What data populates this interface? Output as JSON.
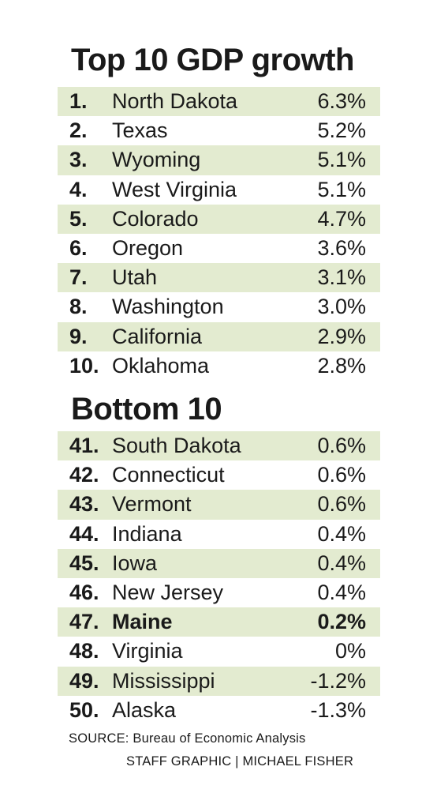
{
  "chart_data": {
    "type": "table",
    "title": "Top 10 GDP growth",
    "sections": [
      {
        "heading": "Top 10 GDP growth",
        "rows": [
          {
            "rank": "1.",
            "state": "North Dakota",
            "value": "6.3%",
            "highlight": false
          },
          {
            "rank": "2.",
            "state": "Texas",
            "value": "5.2%",
            "highlight": false
          },
          {
            "rank": "3.",
            "state": "Wyoming",
            "value": "5.1%",
            "highlight": false
          },
          {
            "rank": "4.",
            "state": "West Virginia",
            "value": "5.1%",
            "highlight": false
          },
          {
            "rank": "5.",
            "state": "Colorado",
            "value": "4.7%",
            "highlight": false
          },
          {
            "rank": "6.",
            "state": "Oregon",
            "value": "3.6%",
            "highlight": false
          },
          {
            "rank": "7.",
            "state": "Utah",
            "value": "3.1%",
            "highlight": false
          },
          {
            "rank": "8.",
            "state": "Washington",
            "value": "3.0%",
            "highlight": false
          },
          {
            "rank": "9.",
            "state": "California",
            "value": "2.9%",
            "highlight": false
          },
          {
            "rank": "10.",
            "state": "Oklahoma",
            "value": "2.8%",
            "highlight": false
          }
        ]
      },
      {
        "heading": "Bottom 10",
        "rows": [
          {
            "rank": "41.",
            "state": "South Dakota",
            "value": "0.6%",
            "highlight": false
          },
          {
            "rank": "42.",
            "state": "Connecticut",
            "value": "0.6%",
            "highlight": false
          },
          {
            "rank": "43.",
            "state": "Vermont",
            "value": "0.6%",
            "highlight": false
          },
          {
            "rank": "44.",
            "state": "Indiana",
            "value": "0.4%",
            "highlight": false
          },
          {
            "rank": "45.",
            "state": "Iowa",
            "value": "0.4%",
            "highlight": false
          },
          {
            "rank": "46.",
            "state": "New Jersey",
            "value": "0.4%",
            "highlight": false
          },
          {
            "rank": "47.",
            "state": "Maine",
            "value": "0.2%",
            "highlight": true
          },
          {
            "rank": "48.",
            "state": "Virginia",
            "value": "0%",
            "highlight": false
          },
          {
            "rank": "49.",
            "state": "Mississippi",
            "value": "-1.2%",
            "highlight": false
          },
          {
            "rank": "50.",
            "state": "Alaska",
            "value": "-1.3%",
            "highlight": false
          }
        ]
      }
    ],
    "stripe_color": "#e3ebd0",
    "source": "SOURCE: Bureau of Economic Analysis",
    "credit": "STAFF GRAPHIC | MICHAEL FISHER"
  }
}
